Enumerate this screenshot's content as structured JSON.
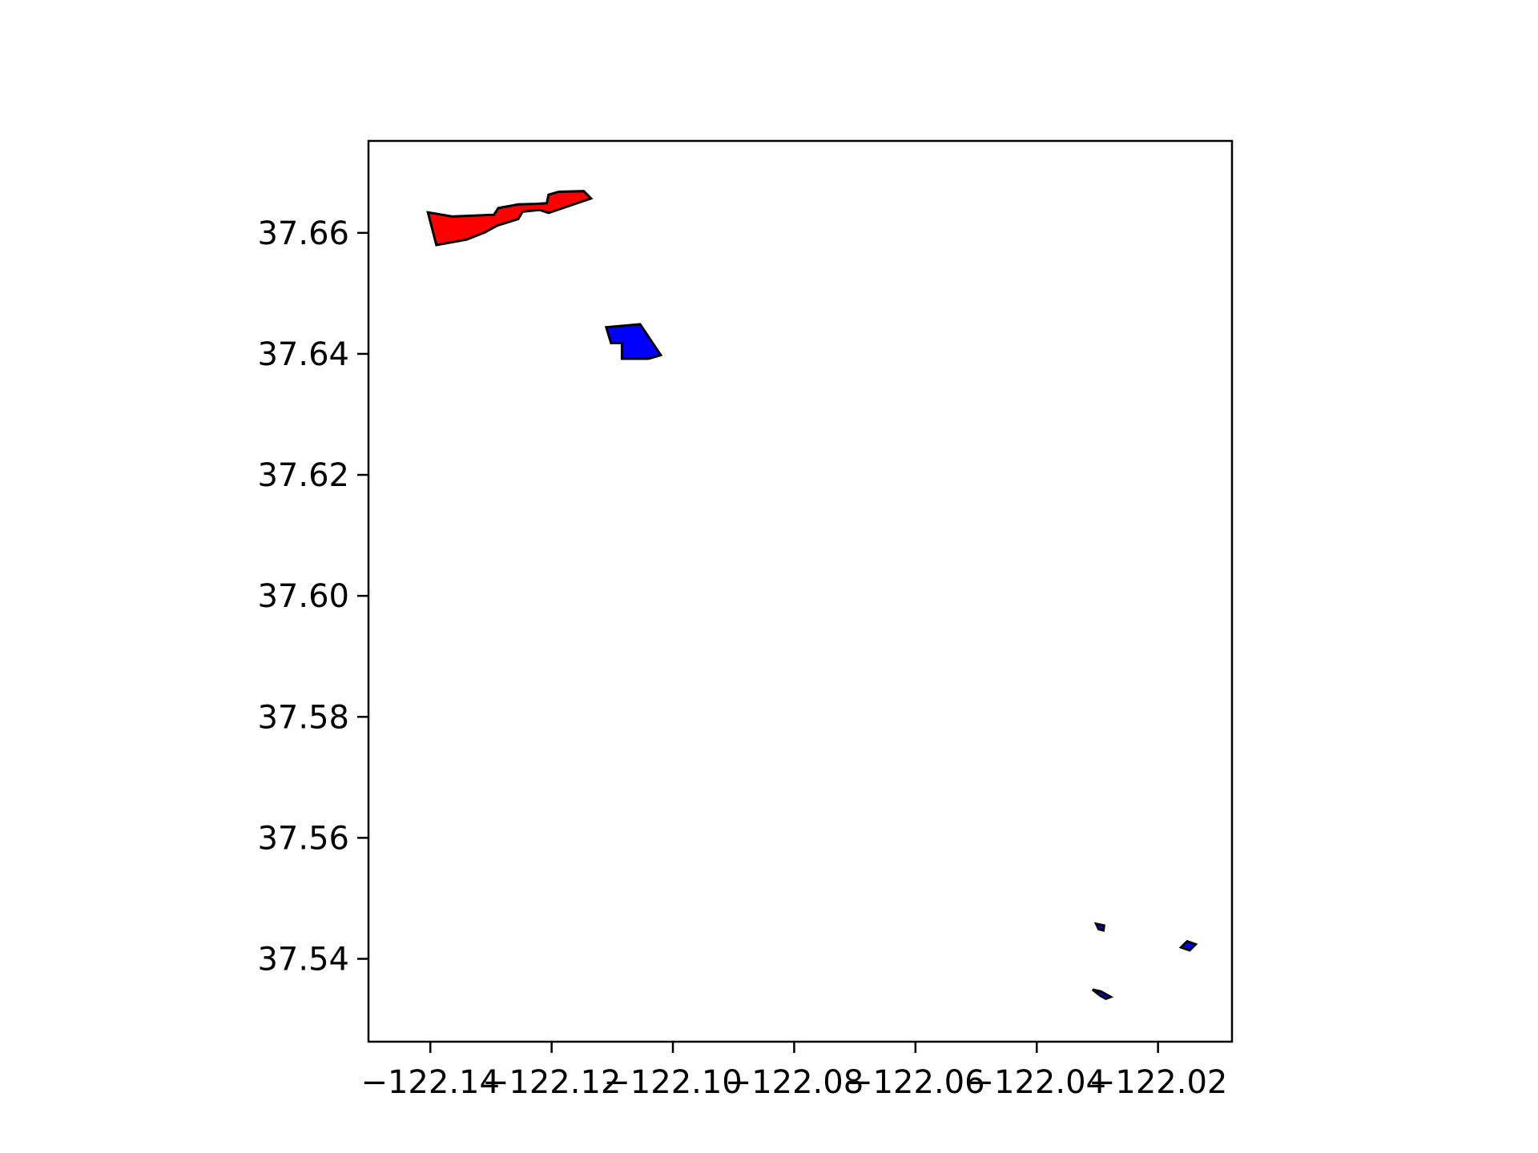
{
  "chart_data": {
    "type": "map",
    "title": "",
    "xlabel": "",
    "ylabel": "",
    "xlim": [
      -122.1502,
      -122.0078
    ],
    "ylim": [
      37.5263,
      37.6752
    ],
    "grid": false,
    "legend": false,
    "xticks": [
      {
        "value": -122.14,
        "label": "−122.14"
      },
      {
        "value": -122.12,
        "label": "−122.12"
      },
      {
        "value": -122.1,
        "label": "−122.10"
      },
      {
        "value": -122.08,
        "label": "−122.08"
      },
      {
        "value": -122.06,
        "label": "−122.06"
      },
      {
        "value": -122.04,
        "label": "−122.04"
      },
      {
        "value": -122.02,
        "label": "−122.02"
      }
    ],
    "yticks": [
      {
        "value": 37.54,
        "label": "37.54"
      },
      {
        "value": 37.56,
        "label": "37.56"
      },
      {
        "value": 37.58,
        "label": "37.58"
      },
      {
        "value": 37.6,
        "label": "37.60"
      },
      {
        "value": 37.62,
        "label": "37.62"
      },
      {
        "value": 37.64,
        "label": "37.64"
      },
      {
        "value": 37.66,
        "label": "37.66"
      }
    ],
    "polygons": [
      {
        "fill": "#ff0000",
        "edge": "#000000",
        "points": [
          [
            -122.1404,
            37.6634
          ],
          [
            -122.1364,
            37.6627
          ],
          [
            -122.1295,
            37.663
          ],
          [
            -122.1288,
            37.6641
          ],
          [
            -122.1255,
            37.6647
          ],
          [
            -122.1225,
            37.6648
          ],
          [
            -122.1208,
            37.6649
          ],
          [
            -122.1205,
            37.6663
          ],
          [
            -122.1188,
            37.6668
          ],
          [
            -122.1147,
            37.6669
          ],
          [
            -122.1135,
            37.6657
          ],
          [
            -122.1205,
            37.6633
          ],
          [
            -122.122,
            37.6638
          ],
          [
            -122.1248,
            37.6635
          ],
          [
            -122.1255,
            37.6623
          ],
          [
            -122.129,
            37.6612
          ],
          [
            -122.131,
            37.6601
          ],
          [
            -122.134,
            37.6589
          ],
          [
            -122.139,
            37.658
          ]
        ]
      },
      {
        "fill": "#0000ff",
        "edge": "#000000",
        "points": [
          [
            -122.111,
            37.6444
          ],
          [
            -122.1054,
            37.6449
          ],
          [
            -122.102,
            37.6398
          ],
          [
            -122.104,
            37.6392
          ],
          [
            -122.1084,
            37.6392
          ],
          [
            -122.1084,
            37.6418
          ],
          [
            -122.1102,
            37.6418
          ]
        ]
      },
      {
        "fill": "#0000ff",
        "edge": "#000000",
        "points": [
          [
            -122.0302,
            37.5458
          ],
          [
            -122.0298,
            37.5449
          ],
          [
            -122.029,
            37.5447
          ],
          [
            -122.0289,
            37.5455
          ]
        ]
      },
      {
        "fill": "#0000ff",
        "edge": "#000000",
        "points": [
          [
            -122.0162,
            37.5419
          ],
          [
            -122.0152,
            37.5429
          ],
          [
            -122.0138,
            37.5424
          ],
          [
            -122.0148,
            37.5414
          ]
        ]
      },
      {
        "fill": "#0000ff",
        "edge": "#000000",
        "points": [
          [
            -122.0308,
            37.5349
          ],
          [
            -122.0295,
            37.5339
          ],
          [
            -122.0286,
            37.5334
          ],
          [
            -122.0278,
            37.5337
          ],
          [
            -122.0294,
            37.5346
          ]
        ]
      }
    ]
  }
}
